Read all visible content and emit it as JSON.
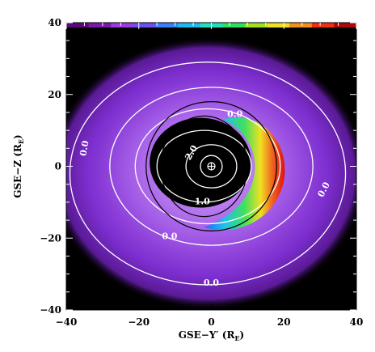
{
  "chart_data": {
    "type": "heatmap",
    "xlabel_main": "GSE−Y′ (R",
    "xlabel_sub": "E",
    "xlabel_close": ")",
    "ylabel_main": "GSE−Z (R",
    "ylabel_sub": "E",
    "ylabel_close": ")",
    "xlim": [
      -40,
      40
    ],
    "ylim": [
      -40,
      40
    ],
    "x_ticks": [
      -40,
      -20,
      0,
      20,
      40
    ],
    "y_ticks": [
      -40,
      -20,
      0,
      20,
      40
    ],
    "x_tick_labels": [
      "−40",
      "−20",
      "0",
      "20",
      "40"
    ],
    "y_tick_labels": [
      "−40",
      "−20",
      "0",
      "20",
      "40"
    ],
    "background_color": "#000000",
    "colorbar_colors": [
      "#5a0a78",
      "#7a1aa8",
      "#9a3ae0",
      "#6a50f0",
      "#3a7ff5",
      "#20b8f0",
      "#20e0c0",
      "#30e060",
      "#a0e020",
      "#f0e020",
      "#f09020",
      "#f03010",
      "#b00808"
    ],
    "contours": [
      {
        "label": "0.0",
        "center": [
          -1,
          -2
        ],
        "rx": 38,
        "ry": 31
      },
      {
        "label": "0.0",
        "center": [
          0,
          0
        ],
        "rx": 28,
        "ry": 22
      },
      {
        "label": "0.0",
        "center": [
          -1,
          0
        ],
        "rx": 20,
        "ry": 16
      },
      {
        "label": "1.0",
        "center": [
          -2,
          0
        ],
        "rx": 13,
        "ry": 10
      },
      {
        "label": "2.0",
        "center": [
          0,
          0
        ],
        "rx": 7,
        "ry": 6
      },
      {
        "label": "",
        "center": [
          0,
          0
        ],
        "rx": 3,
        "ry": 3
      }
    ],
    "contour_labels": [
      {
        "text": "0.0",
        "x": 6.5,
        "y": 14.5,
        "rotate": 0
      },
      {
        "text": "0.0",
        "x": -35,
        "y": 5,
        "rotate": -80
      },
      {
        "text": "2.0",
        "x": -5.5,
        "y": 3.8,
        "rotate": -60
      },
      {
        "text": "1.0",
        "x": -2.5,
        "y": -9.8,
        "rotate": 0
      },
      {
        "text": "0.0",
        "x": 31,
        "y": -6.5,
        "rotate": -62
      },
      {
        "text": "0.0",
        "x": -11.5,
        "y": -19.5,
        "rotate": 0
      },
      {
        "text": "0.0",
        "x": 0,
        "y": -32.5,
        "rotate": 0
      }
    ],
    "circles": [
      {
        "center": [
          0,
          0
        ],
        "r": 18
      },
      {
        "center": [
          -2,
          0
        ],
        "rx": 12,
        "ry": 14
      }
    ],
    "earth_symbol": {
      "x": 0,
      "y": 0
    }
  }
}
